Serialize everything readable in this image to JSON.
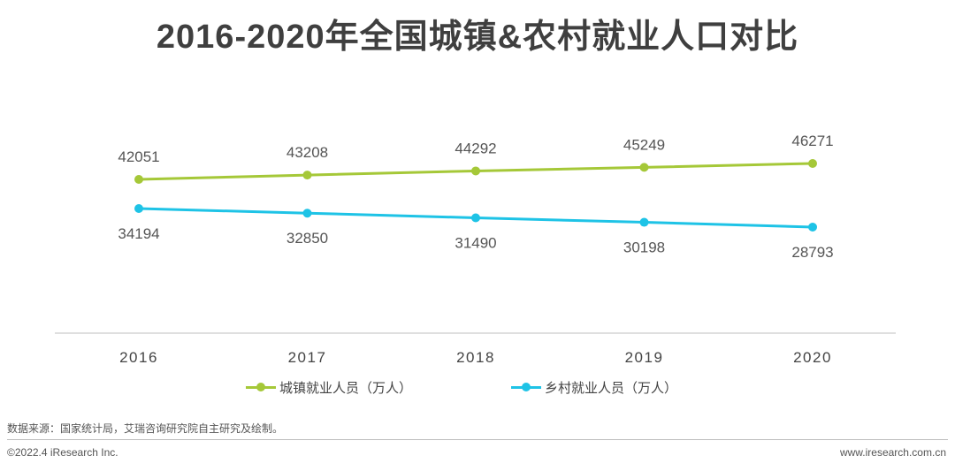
{
  "title": "2016-2020年全国城镇&农村就业人口对比",
  "colors": {
    "urban": "#a5c838",
    "rural": "#1ec3e6",
    "axis": "#bfbfbf",
    "label": "#555555"
  },
  "chart_data": {
    "type": "line",
    "categories": [
      "2016",
      "2017",
      "2018",
      "2019",
      "2020"
    ],
    "series": [
      {
        "name": "城镇就业人员（万人）",
        "values": [
          42051,
          43208,
          44292,
          45249,
          46271
        ]
      },
      {
        "name": "乡村就业人员（万人）",
        "values": [
          34194,
          32850,
          31490,
          30198,
          28793
        ]
      }
    ],
    "grid": false,
    "legend_position": "bottom"
  },
  "legend": {
    "urban": "城镇就业人员（万人）",
    "rural": "乡村就业人员（万人）"
  },
  "source": "数据来源：国家统计局，艾瑞咨询研究院自主研究及绘制。",
  "copyright": "©2022.4 iResearch Inc.",
  "website": "www.iresearch.com.cn"
}
